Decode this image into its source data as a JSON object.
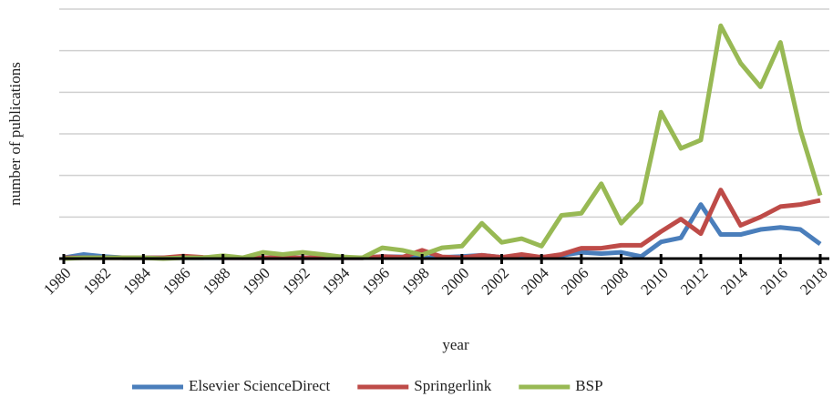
{
  "chart_data": {
    "type": "line",
    "y_label": "number of publications",
    "x_label": "year",
    "x": [
      1980,
      1981,
      1982,
      1983,
      1984,
      1985,
      1986,
      1987,
      1988,
      1989,
      1990,
      1991,
      1992,
      1993,
      1994,
      1995,
      1996,
      1997,
      1998,
      1999,
      2000,
      2001,
      2002,
      2003,
      2004,
      2005,
      2006,
      2007,
      2008,
      2009,
      2010,
      2011,
      2012,
      2013,
      2014,
      2015,
      2016,
      2017,
      2018
    ],
    "xlim": [
      1980,
      2018
    ],
    "xticks": [
      1980,
      1982,
      1984,
      1986,
      1988,
      1990,
      1992,
      1994,
      1996,
      1998,
      2000,
      2002,
      2004,
      2006,
      2008,
      2010,
      2012,
      2014,
      2016,
      2018
    ],
    "ylim": [
      0,
      6
    ],
    "yticks": [
      0,
      1,
      2,
      3,
      4,
      5,
      6
    ],
    "grid": true,
    "legend": "bottom",
    "series": [
      {
        "name": "Elsevier ScienceDirect",
        "color": "#4a7ebb",
        "values": [
          0.02,
          0.1,
          0.05,
          0.02,
          0.02,
          0.02,
          0.02,
          0.02,
          0.02,
          0.02,
          0.02,
          0.02,
          0.02,
          0.02,
          0.02,
          0.02,
          0.05,
          0.04,
          0.02,
          0.03,
          0.05,
          0.08,
          0.03,
          0.05,
          0.03,
          0.08,
          0.15,
          0.12,
          0.15,
          0.05,
          0.4,
          0.5,
          1.3,
          0.58,
          0.58,
          0.7,
          0.75,
          0.7,
          0.35
        ]
      },
      {
        "name": "Springerlink",
        "color": "#be4b48",
        "values": [
          0.02,
          0.02,
          0.02,
          0.02,
          0.02,
          0.02,
          0.06,
          0.03,
          0.02,
          0.02,
          0.02,
          0.02,
          0.02,
          0.02,
          0.02,
          0.02,
          0.05,
          0.03,
          0.2,
          0.04,
          0.02,
          0.08,
          0.03,
          0.1,
          0.03,
          0.1,
          0.25,
          0.25,
          0.32,
          0.32,
          0.65,
          0.95,
          0.6,
          1.65,
          0.8,
          1.0,
          1.25,
          1.3,
          1.4
        ]
      },
      {
        "name": "BSP",
        "color": "#98b954",
        "values": [
          0,
          0.02,
          0.02,
          0.02,
          0.02,
          0,
          0.02,
          0.02,
          0.07,
          0.02,
          0.15,
          0.1,
          0.15,
          0.1,
          0.04,
          0.02,
          0.26,
          0.2,
          0.09,
          0.26,
          0.3,
          0.85,
          0.39,
          0.48,
          0.3,
          1.04,
          1.09,
          1.8,
          0.85,
          1.35,
          3.52,
          2.65,
          2.85,
          5.6,
          4.7,
          4.13,
          5.2,
          3.09,
          1.52
        ]
      }
    ]
  }
}
